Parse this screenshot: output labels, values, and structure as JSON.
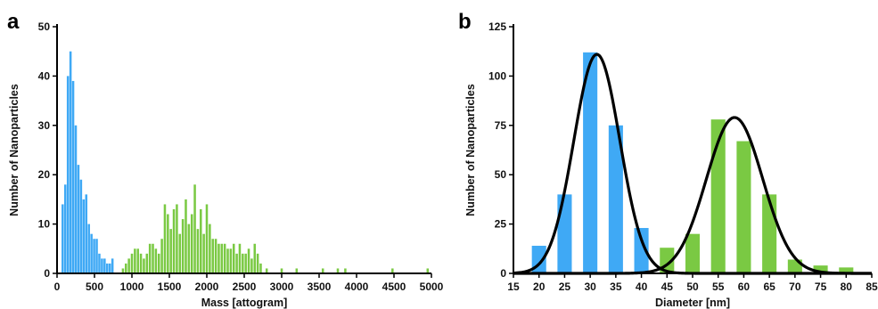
{
  "chart_data": [
    {
      "type": "bar",
      "panel_label": "a",
      "xlabel": "Mass [attogram]",
      "ylabel": "Number of Nanoparticles",
      "xlim": [
        0,
        5000
      ],
      "ylim": [
        0,
        50
      ],
      "xticks": [
        0,
        500,
        1000,
        1500,
        2000,
        2500,
        3000,
        3500,
        4000,
        4500,
        5000
      ],
      "yticks": [
        0,
        10,
        20,
        30,
        40,
        50
      ],
      "bin_width": 30,
      "series": [
        {
          "color": "#3fa9f5",
          "points": [
            [
              75,
              14
            ],
            [
              110,
              18
            ],
            [
              145,
              40
            ],
            [
              180,
              45
            ],
            [
              215,
              39
            ],
            [
              250,
              30
            ],
            [
              285,
              22
            ],
            [
              320,
              19
            ],
            [
              355,
              15
            ],
            [
              390,
              16
            ],
            [
              425,
              10
            ],
            [
              460,
              8
            ],
            [
              495,
              7
            ],
            [
              530,
              7
            ],
            [
              565,
              4
            ],
            [
              600,
              3
            ],
            [
              635,
              3
            ],
            [
              670,
              2
            ],
            [
              705,
              2
            ],
            [
              740,
              3
            ]
          ]
        },
        {
          "color": "#7ac943",
          "points": [
            [
              880,
              1
            ],
            [
              920,
              2
            ],
            [
              960,
              3
            ],
            [
              1000,
              4
            ],
            [
              1040,
              5
            ],
            [
              1080,
              5
            ],
            [
              1120,
              4
            ],
            [
              1160,
              3
            ],
            [
              1200,
              4
            ],
            [
              1240,
              6
            ],
            [
              1280,
              6
            ],
            [
              1320,
              5
            ],
            [
              1360,
              4
            ],
            [
              1400,
              7
            ],
            [
              1440,
              14
            ],
            [
              1480,
              12
            ],
            [
              1520,
              9
            ],
            [
              1560,
              13
            ],
            [
              1600,
              14
            ],
            [
              1640,
              8
            ],
            [
              1680,
              11
            ],
            [
              1720,
              15
            ],
            [
              1760,
              10
            ],
            [
              1800,
              12
            ],
            [
              1840,
              18
            ],
            [
              1880,
              9
            ],
            [
              1920,
              13
            ],
            [
              1960,
              8
            ],
            [
              2000,
              14
            ],
            [
              2040,
              10
            ],
            [
              2080,
              7
            ],
            [
              2120,
              7
            ],
            [
              2160,
              6
            ],
            [
              2200,
              6
            ],
            [
              2240,
              6
            ],
            [
              2280,
              5
            ],
            [
              2320,
              5
            ],
            [
              2360,
              6
            ],
            [
              2400,
              4
            ],
            [
              2440,
              6
            ],
            [
              2480,
              4
            ],
            [
              2520,
              4
            ],
            [
              2560,
              5
            ],
            [
              2600,
              3
            ],
            [
              2640,
              6
            ],
            [
              2680,
              4
            ],
            [
              2720,
              2
            ],
            [
              2800,
              1
            ],
            [
              3000,
              1
            ],
            [
              3200,
              1
            ],
            [
              3550,
              1
            ],
            [
              3750,
              1
            ],
            [
              3850,
              1
            ],
            [
              4480,
              1
            ],
            [
              4950,
              1
            ]
          ]
        }
      ]
    },
    {
      "type": "bar",
      "panel_label": "b",
      "xlabel": "Diameter [nm]",
      "ylabel": "Number of Nanoparticles",
      "xlim": [
        15,
        85
      ],
      "ylim": [
        0,
        125
      ],
      "xticks": [
        15,
        20,
        25,
        30,
        35,
        40,
        45,
        50,
        55,
        60,
        65,
        70,
        75,
        80,
        85
      ],
      "yticks": [
        0,
        25,
        50,
        75,
        100,
        125
      ],
      "bin_width": 2.8,
      "series": [
        {
          "color": "#3fa9f5",
          "points": [
            [
              20,
              14
            ],
            [
              25,
              40
            ],
            [
              30,
              112
            ],
            [
              35,
              75
            ],
            [
              40,
              23
            ]
          ]
        },
        {
          "color": "#7ac943",
          "points": [
            [
              45,
              13
            ],
            [
              50,
              20
            ],
            [
              55,
              78
            ],
            [
              60,
              67
            ],
            [
              65,
              40
            ],
            [
              70,
              7
            ],
            [
              75,
              4
            ],
            [
              80,
              3
            ]
          ]
        }
      ],
      "fits": [
        {
          "type": "gaussian",
          "mean": 31.3,
          "sd": 4.5,
          "amplitude": 111
        },
        {
          "type": "gaussian",
          "mean": 58.2,
          "sd": 5.5,
          "amplitude": 79
        }
      ]
    }
  ]
}
